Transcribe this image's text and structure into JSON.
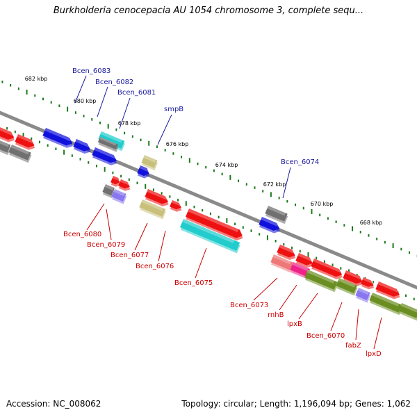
{
  "title": "Burkholderia cenocepacia AU 1054 chromosome 3, complete sequ...",
  "footer": {
    "accession": "Accession: NC_008062",
    "summary": "Topology: circular; Length: 1,196,094 bp; Genes: 1,062"
  },
  "colors": {
    "backbone": "#8a8a8a",
    "tick": "#1a7a1a",
    "label_plus": "#1a1aa0",
    "label_minus": "#cc0000",
    "red": "#ee1111",
    "blue": "#1111dd",
    "cyan": "#22cccc",
    "olive": "#6b8e23",
    "khaki": "#c8c07a",
    "gray": "#707070",
    "purple": "#8877ee",
    "pink": "#ee2288",
    "salmon": "#ee7777"
  },
  "scale_ticks": [
    "682 kbp",
    "680 kbp",
    "678 kbp",
    "676 kbp",
    "674 kbp",
    "672 kbp",
    "670 kbp",
    "668 kbp"
  ],
  "gene_labels": [
    {
      "text": "Bcen_6083",
      "strand": "plus"
    },
    {
      "text": "Bcen_6082",
      "strand": "plus"
    },
    {
      "text": "Bcen_6081",
      "strand": "plus"
    },
    {
      "text": "smpB",
      "strand": "plus"
    },
    {
      "text": "Bcen_6074",
      "strand": "plus"
    },
    {
      "text": "Bcen_6080",
      "strand": "minus"
    },
    {
      "text": "Bcen_6079",
      "strand": "minus"
    },
    {
      "text": "Bcen_6077",
      "strand": "minus"
    },
    {
      "text": "Bcen_6076",
      "strand": "minus"
    },
    {
      "text": "Bcen_6075",
      "strand": "minus"
    },
    {
      "text": "Bcen_6073",
      "strand": "minus"
    },
    {
      "text": "rnhB",
      "strand": "minus"
    },
    {
      "text": "lpxB",
      "strand": "minus"
    },
    {
      "text": "Bcen_6070",
      "strand": "minus"
    },
    {
      "text": "fabZ",
      "strand": "minus"
    },
    {
      "text": "lpxD",
      "strand": "minus"
    }
  ]
}
